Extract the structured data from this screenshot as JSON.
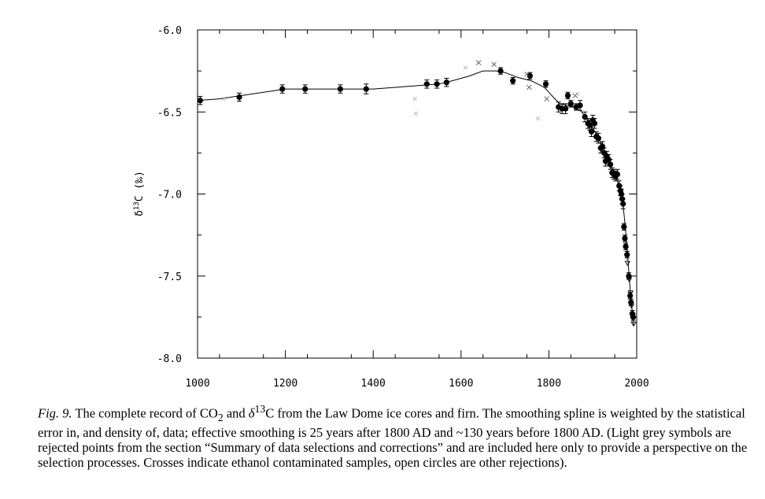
{
  "chart_data": {
    "type": "scatter",
    "ylabel_main": "δ",
    "ylabel_sup": "13",
    "ylabel_rest": "C (‰)",
    "xlim": [
      1000,
      2000
    ],
    "ylim": [
      -8.0,
      -6.0
    ],
    "x_ticks": [
      1000,
      1200,
      1400,
      1600,
      1800,
      2000
    ],
    "x_tick_labels": [
      "1000",
      "1200",
      "1400",
      "1600",
      "1800",
      "2000"
    ],
    "y_ticks": [
      -6.0,
      -6.5,
      -7.0,
      -7.5,
      -8.0
    ],
    "y_tick_labels": [
      "-6.0",
      "-6.5",
      "-7.0",
      "-7.5",
      "-8.0"
    ],
    "series": [
      {
        "marker": "filled-circle",
        "color": "#000000",
        "points": [
          {
            "x": 1006,
            "y": -6.43,
            "err": 0.025
          },
          {
            "x": 1095,
            "y": -6.41,
            "err": 0.025
          },
          {
            "x": 1193,
            "y": -6.36,
            "err": 0.025
          },
          {
            "x": 1245,
            "y": -6.36,
            "err": 0.025
          },
          {
            "x": 1325,
            "y": -6.36,
            "err": 0.025
          },
          {
            "x": 1384,
            "y": -6.36,
            "err": 0.03
          },
          {
            "x": 1522,
            "y": -6.33,
            "err": 0.025
          },
          {
            "x": 1545,
            "y": -6.33,
            "err": 0.025
          },
          {
            "x": 1567,
            "y": -6.32,
            "err": 0.025
          },
          {
            "x": 1690,
            "y": -6.25,
            "err": 0.02
          },
          {
            "x": 1718,
            "y": -6.31,
            "err": 0.02
          },
          {
            "x": 1757,
            "y": -6.28,
            "err": 0.02
          },
          {
            "x": 1793,
            "y": -6.33,
            "err": 0.02
          },
          {
            "x": 1822,
            "y": -6.47,
            "err": 0.03
          },
          {
            "x": 1830,
            "y": -6.48,
            "err": 0.03
          },
          {
            "x": 1838,
            "y": -6.48,
            "err": 0.03
          },
          {
            "x": 1843,
            "y": -6.4,
            "err": 0.02
          },
          {
            "x": 1850,
            "y": -6.45,
            "err": 0.02
          },
          {
            "x": 1862,
            "y": -6.47,
            "err": 0.02
          },
          {
            "x": 1871,
            "y": -6.46,
            "err": 0.03
          },
          {
            "x": 1882,
            "y": -6.53,
            "err": 0.03
          },
          {
            "x": 1889,
            "y": -6.57,
            "err": 0.03
          },
          {
            "x": 1893,
            "y": -6.58,
            "err": 0.03
          },
          {
            "x": 1897,
            "y": -6.62,
            "err": 0.03
          },
          {
            "x": 1900,
            "y": -6.55,
            "err": 0.03
          },
          {
            "x": 1904,
            "y": -6.57,
            "err": 0.03
          },
          {
            "x": 1908,
            "y": -6.65,
            "err": 0.03
          },
          {
            "x": 1913,
            "y": -6.66,
            "err": 0.03
          },
          {
            "x": 1918,
            "y": -6.72,
            "err": 0.03
          },
          {
            "x": 1922,
            "y": -6.71,
            "err": 0.03
          },
          {
            "x": 1926,
            "y": -6.75,
            "err": 0.03
          },
          {
            "x": 1929,
            "y": -6.8,
            "err": 0.03
          },
          {
            "x": 1932,
            "y": -6.77,
            "err": 0.03
          },
          {
            "x": 1936,
            "y": -6.79,
            "err": 0.03
          },
          {
            "x": 1940,
            "y": -6.82,
            "err": 0.03
          },
          {
            "x": 1944,
            "y": -6.87,
            "err": 0.03
          },
          {
            "x": 1948,
            "y": -6.88,
            "err": 0.03
          },
          {
            "x": 1952,
            "y": -6.89,
            "err": 0.03
          },
          {
            "x": 1956,
            "y": -6.88,
            "err": 0.03
          },
          {
            "x": 1960,
            "y": -6.95,
            "err": 0.03
          },
          {
            "x": 1963,
            "y": -6.98,
            "err": 0.03
          },
          {
            "x": 1965,
            "y": -7.0,
            "err": 0.03
          },
          {
            "x": 1967,
            "y": -7.03,
            "err": 0.03
          },
          {
            "x": 1969,
            "y": -7.06,
            "err": 0.03
          },
          {
            "x": 1971,
            "y": -7.2,
            "err": 0.02
          },
          {
            "x": 1973,
            "y": -7.27,
            "err": 0.02
          },
          {
            "x": 1975,
            "y": -7.32,
            "err": 0.02
          },
          {
            "x": 1978,
            "y": -7.37,
            "err": 0.02
          },
          {
            "x": 1982,
            "y": -7.5,
            "err": 0.02
          },
          {
            "x": 1985,
            "y": -7.62,
            "err": 0.02
          },
          {
            "x": 1987,
            "y": -7.66,
            "err": 0.02
          },
          {
            "x": 1990,
            "y": -7.73,
            "err": 0.02
          },
          {
            "x": 1992,
            "y": -7.75,
            "err": 0.02
          }
        ]
      },
      {
        "marker": "open-triangle-down",
        "color": "#000000",
        "points": [
          {
            "x": 1979,
            "y": -7.42
          },
          {
            "x": 1983,
            "y": -7.52
          },
          {
            "x": 1986,
            "y": -7.6
          },
          {
            "x": 1988,
            "y": -7.68
          },
          {
            "x": 1991,
            "y": -7.74
          },
          {
            "x": 1993,
            "y": -7.79
          }
        ]
      },
      {
        "marker": "cross",
        "color": "#555555",
        "points": [
          {
            "x": 1640,
            "y": -6.2
          },
          {
            "x": 1675,
            "y": -6.21
          },
          {
            "x": 1750,
            "y": -6.27
          },
          {
            "x": 1795,
            "y": -6.42
          },
          {
            "x": 1860,
            "y": -6.4
          },
          {
            "x": 1755,
            "y": -6.35
          }
        ]
      },
      {
        "marker": "grey-rejected",
        "color": "#b0b0b0",
        "points": [
          {
            "x": 1495,
            "y": -6.42
          },
          {
            "x": 1497,
            "y": -6.51
          },
          {
            "x": 1610,
            "y": -6.23
          },
          {
            "x": 1775,
            "y": -6.54
          },
          {
            "x": 1865,
            "y": -6.39
          },
          {
            "x": 1060,
            "y": -6.42
          }
        ]
      }
    ],
    "spline": [
      [
        1000,
        -6.43
      ],
      [
        1050,
        -6.42
      ],
      [
        1100,
        -6.4
      ],
      [
        1150,
        -6.38
      ],
      [
        1200,
        -6.36
      ],
      [
        1300,
        -6.36
      ],
      [
        1400,
        -6.36
      ],
      [
        1450,
        -6.35
      ],
      [
        1500,
        -6.34
      ],
      [
        1550,
        -6.33
      ],
      [
        1580,
        -6.31
      ],
      [
        1620,
        -6.28
      ],
      [
        1650,
        -6.25
      ],
      [
        1680,
        -6.25
      ],
      [
        1700,
        -6.26
      ],
      [
        1730,
        -6.29
      ],
      [
        1760,
        -6.31
      ],
      [
        1790,
        -6.35
      ],
      [
        1810,
        -6.41
      ],
      [
        1825,
        -6.45
      ],
      [
        1840,
        -6.46
      ],
      [
        1860,
        -6.47
      ],
      [
        1875,
        -6.5
      ],
      [
        1890,
        -6.56
      ],
      [
        1905,
        -6.62
      ],
      [
        1920,
        -6.7
      ],
      [
        1935,
        -6.79
      ],
      [
        1950,
        -6.88
      ],
      [
        1960,
        -6.95
      ],
      [
        1968,
        -7.04
      ],
      [
        1974,
        -7.2
      ],
      [
        1980,
        -7.4
      ],
      [
        1985,
        -7.58
      ],
      [
        1990,
        -7.72
      ],
      [
        1993,
        -7.8
      ]
    ]
  },
  "caption": {
    "fig_label": "Fig. 9.",
    "text_1": " The complete record of CO",
    "co2_sub": "2",
    "text_2": " and ",
    "delta": "δ",
    "delta_sup": "13",
    "text_3": "C from the Law Dome ice cores and firn. The smoothing spline is weighted by the statistical error in, and density of, data; effective smoothing is 25 years after 1800 AD and ~130 years before 1800 AD. (Light grey symbols are rejected points from the section “Summary of data selections and corrections” and are included here only to provide a perspective on the selection processes. Crosses indicate ethanol contaminated samples, open circles are other rejections)."
  }
}
